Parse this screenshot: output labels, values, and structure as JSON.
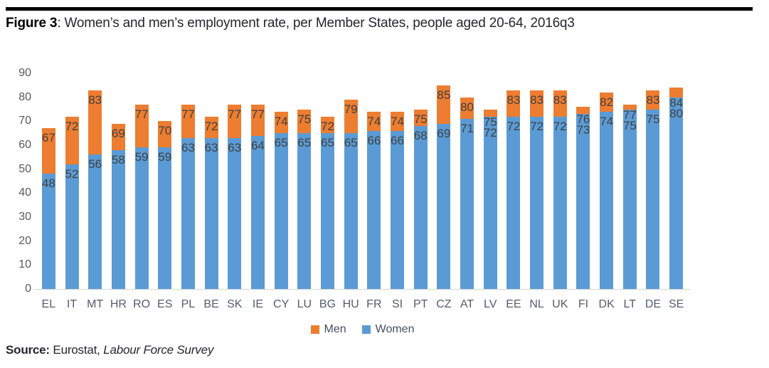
{
  "figure": {
    "label": "Figure 3",
    "title_rest": ": Women’s and men’s employment rate, per Member States, people aged 20-64, 2016q3"
  },
  "source": {
    "label": "Source:",
    "prefix": " Eurostat, ",
    "italic": "Labour Force Survey"
  },
  "legend": [
    {
      "label": "Men",
      "color": "#ED7D31"
    },
    {
      "label": "Women",
      "color": "#5B9BD5"
    }
  ],
  "colors": {
    "men": "#ED7D31",
    "women": "#5B9BD5",
    "value_label": "#404040",
    "axis_label": "#595959",
    "baseline": "#D6D6D6"
  },
  "chart_data": {
    "type": "bar",
    "variant": "overlay-stacked: blue bar height = Women rate, orange cap extends up to Men rate",
    "title": "Figure 3: Women’s and men’s employment rate, per Member States, people aged 20-64, 2016q3",
    "categories": [
      "EL",
      "IT",
      "MT",
      "HR",
      "RO",
      "ES",
      "PL",
      "BE",
      "SK",
      "IE",
      "CY",
      "LU",
      "BG",
      "HU",
      "FR",
      "SI",
      "PT",
      "CZ",
      "AT",
      "LV",
      "EE",
      "NL",
      "UK",
      "FI",
      "DK",
      "LT",
      "DE",
      "SE"
    ],
    "series": [
      {
        "name": "Women",
        "color": "#5B9BD5",
        "values": [
          48,
          52,
          56,
          58,
          59,
          59,
          63,
          63,
          63,
          64,
          65,
          65,
          65,
          65,
          66,
          66,
          68,
          69,
          71,
          72,
          72,
          72,
          72,
          73,
          74,
          75,
          75,
          80
        ]
      },
      {
        "name": "Men",
        "color": "#ED7D31",
        "values": [
          67,
          72,
          83,
          69,
          77,
          70,
          77,
          72,
          77,
          77,
          74,
          75,
          72,
          79,
          74,
          74,
          75,
          85,
          80,
          75,
          83,
          83,
          83,
          76,
          82,
          77,
          83,
          84
        ]
      }
    ],
    "xlabel": "",
    "ylabel": "",
    "ylim": [
      0,
      90
    ],
    "ytick_step": 10,
    "grid": false,
    "legend_position": "bottom",
    "value_labels": "inside end of each segment"
  }
}
